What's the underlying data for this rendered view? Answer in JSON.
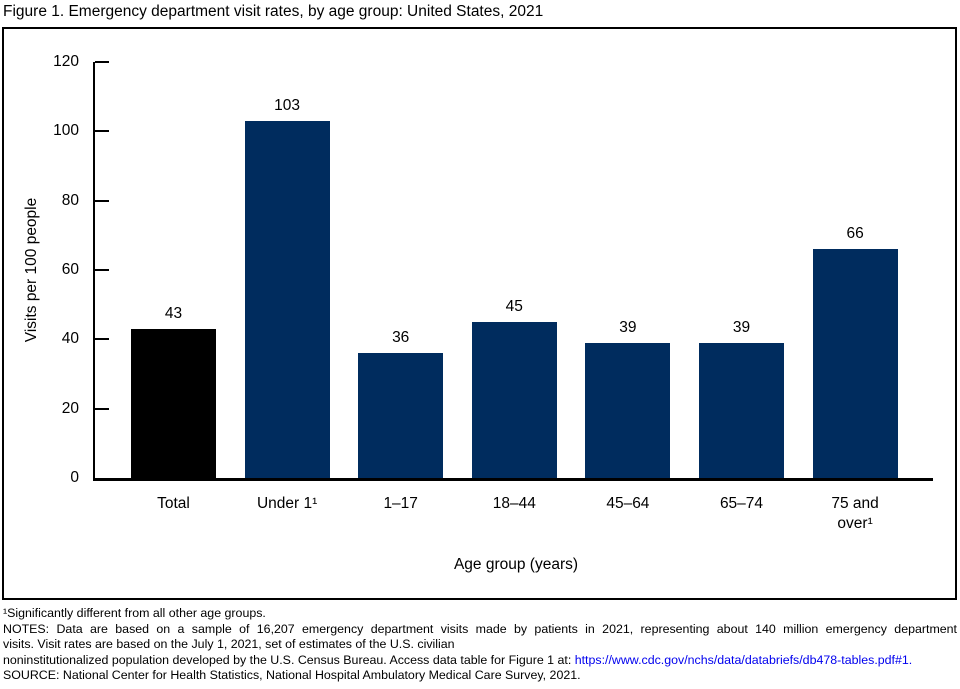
{
  "chart_data": {
    "type": "bar",
    "title": "Figure 1. Emergency department visit rates, by age group: United States, 2021",
    "categories": [
      "Total",
      "Under 1¹",
      "1–17",
      "18–44",
      "45–64",
      "65–74",
      "75 and\nover¹"
    ],
    "values": [
      43,
      103,
      36,
      45,
      39,
      39,
      66
    ],
    "bar_colors": [
      "#000000",
      "#002c5e",
      "#002c5e",
      "#002c5e",
      "#002c5e",
      "#002c5e",
      "#002c5e"
    ],
    "xlabel": "Age group (years)",
    "ylabel": "Visits per 100 people",
    "ylim": [
      0,
      120
    ],
    "yticks": [
      0,
      20,
      40,
      60,
      80,
      100,
      120
    ],
    "grid": false,
    "legend": "none",
    "data_labels_shown": true
  },
  "footnotes": {
    "line1": "¹Significantly different from all other age groups.",
    "line2": "NOTES: Data are based on a sample of 16,207 emergency department visits made by patients in 2021, representing about 140 million emergency department",
    "line3": "visits. Visit rates are based on the July 1, 2021, set of estimates of the U.S. civilian",
    "line4_prefix": "noninstitutionalized population developed by the U.S. Census Bureau. Access data table for Figure 1 at: ",
    "line4_link": "https://www.cdc.gov/nchs/data/databriefs/db478-tables.pdf#1.",
    "line5": "SOURCE: National Center for Health Statistics, National Hospital Ambulatory Medical Care Survey, 2021."
  },
  "colors": {
    "axis": "#000000",
    "link": "#0000ee",
    "highlight_bar": "#000000",
    "default_bar": "#002c5e"
  }
}
